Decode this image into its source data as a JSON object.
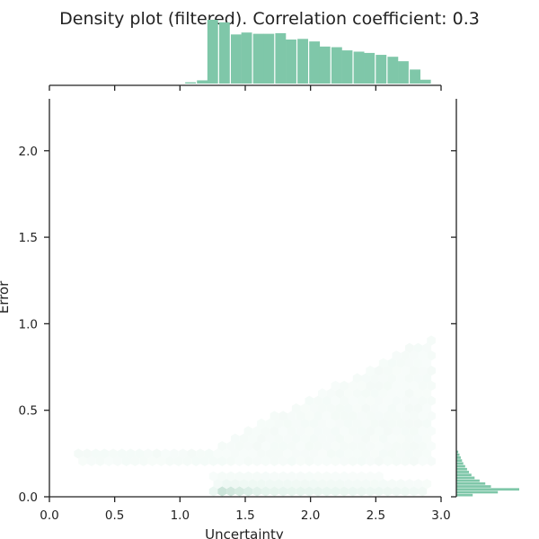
{
  "chart_data": {
    "type": "hexbin",
    "title": "Density plot (filtered). Correlation coefficient: 0.3",
    "xlabel": "Uncertainty",
    "ylabel": "Error",
    "xlim": [
      0.0,
      3.0
    ],
    "ylim": [
      0.0,
      2.3
    ],
    "x_ticks": [
      "0.0",
      "0.5",
      "1.0",
      "1.5",
      "2.0",
      "2.5",
      "3.0"
    ],
    "y_ticks": [
      "0.0",
      "0.5",
      "1.0",
      "1.5",
      "2.0"
    ],
    "grid": false,
    "colors": {
      "hist": "#7fc7a9",
      "hex_dark": "#0a0a0a",
      "hex_mid": "#1e7a55",
      "hex_light": "#e6f5ee"
    },
    "marginal_x": {
      "bin_width": 0.0857,
      "bins_start": [
        1.04,
        1.13,
        1.21,
        1.3,
        1.39,
        1.47,
        1.56,
        1.64,
        1.73,
        1.81,
        1.9,
        1.99,
        2.07,
        2.16,
        2.24,
        2.33,
        2.41,
        2.5,
        2.59,
        2.67,
        2.76,
        2.84
      ],
      "heights": [
        0.02,
        0.05,
        1.0,
        0.96,
        0.77,
        0.8,
        0.78,
        0.78,
        0.79,
        0.69,
        0.7,
        0.66,
        0.58,
        0.57,
        0.52,
        0.5,
        0.48,
        0.45,
        0.42,
        0.35,
        0.22,
        0.06
      ]
    },
    "marginal_y": {
      "bin_height": 0.0167,
      "bins_start": [
        0.0,
        0.0167,
        0.0333,
        0.05,
        0.0667,
        0.0833,
        0.1,
        0.1167,
        0.1333,
        0.15,
        0.1667,
        0.1833,
        0.2,
        0.2167,
        0.2333,
        0.25
      ],
      "widths": [
        0.26,
        0.66,
        1.0,
        0.55,
        0.46,
        0.37,
        0.29,
        0.24,
        0.2,
        0.17,
        0.14,
        0.11,
        0.09,
        0.07,
        0.05,
        0.03
      ]
    }
  }
}
